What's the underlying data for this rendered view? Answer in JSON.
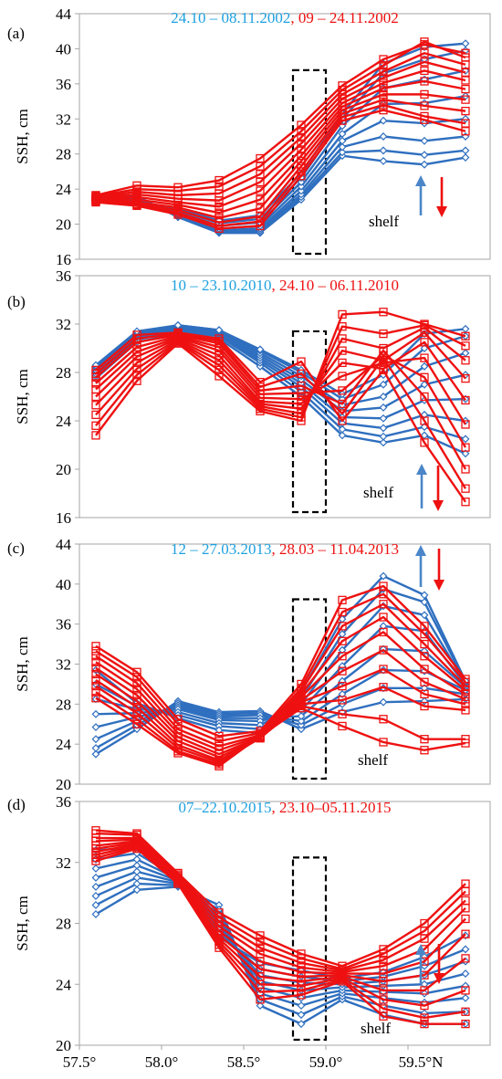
{
  "chart_data": [
    {
      "type": "line",
      "panel_label": "(a)",
      "ylabel": "SSH, cm",
      "ylim": [
        16,
        44
      ],
      "yticks": [
        16,
        20,
        24,
        28,
        32,
        36,
        40,
        44
      ],
      "period_1": "24.10 – 08.11.2002",
      "separator": ", ",
      "period_2": "09 – 24.11.2002",
      "annotation": "shelf",
      "x": [
        57.6,
        57.85,
        58.1,
        58.35,
        58.6,
        58.85,
        59.1,
        59.35,
        59.6,
        59.85
      ],
      "blue_series": [
        [
          23.2,
          23.2,
          20.8,
          19.0,
          19.0,
          22.8,
          27.8,
          27.2,
          26.8,
          27.6
        ],
        [
          23.1,
          23.0,
          20.9,
          19.1,
          19.1,
          23.1,
          28.2,
          28.4,
          27.9,
          28.4
        ],
        [
          23.0,
          22.9,
          21.0,
          19.2,
          19.3,
          23.4,
          28.8,
          30.0,
          29.5,
          30.0
        ],
        [
          22.9,
          22.8,
          21.1,
          19.3,
          19.5,
          23.8,
          29.5,
          31.8,
          31.5,
          32.0
        ],
        [
          22.8,
          22.7,
          21.2,
          19.5,
          19.8,
          24.3,
          30.3,
          33.7,
          33.8,
          34.6
        ],
        [
          22.8,
          22.6,
          21.4,
          19.8,
          20.2,
          24.8,
          31.2,
          35.5,
          36.5,
          37.5
        ],
        [
          22.7,
          22.5,
          21.6,
          20.1,
          20.6,
          25.3,
          32.0,
          37.2,
          38.8,
          39.8
        ],
        [
          22.7,
          22.5,
          21.8,
          20.4,
          21.0,
          25.8,
          32.6,
          38.3,
          40.2,
          40.6
        ]
      ],
      "red_series": [
        [
          23.3,
          24.4,
          24.2,
          25.0,
          27.5,
          31.3,
          35.8,
          38.8,
          40.5,
          39.5
        ],
        [
          23.2,
          24.0,
          23.8,
          24.3,
          26.6,
          30.6,
          35.3,
          38.1,
          40.8,
          39.0
        ],
        [
          23.1,
          23.7,
          23.3,
          23.5,
          25.7,
          29.9,
          34.8,
          37.4,
          39.5,
          38.2
        ],
        [
          23.0,
          23.4,
          22.9,
          22.7,
          24.8,
          29.2,
          34.3,
          36.7,
          38.5,
          37.3
        ],
        [
          22.9,
          23.1,
          22.5,
          22.0,
          23.8,
          28.5,
          33.8,
          36.1,
          37.5,
          36.4
        ],
        [
          22.8,
          22.8,
          22.2,
          21.3,
          22.8,
          27.8,
          33.4,
          35.5,
          36.3,
          35.4
        ],
        [
          22.8,
          22.5,
          21.9,
          20.7,
          21.8,
          27.2,
          33.0,
          34.8,
          34.8,
          34.2
        ],
        [
          22.7,
          22.3,
          21.6,
          20.2,
          20.9,
          26.6,
          32.6,
          34.2,
          33.5,
          32.9
        ],
        [
          22.6,
          22.2,
          21.3,
          19.8,
          20.3,
          26.0,
          32.2,
          33.6,
          32.3,
          31.5
        ],
        [
          22.5,
          22.1,
          21.1,
          19.5,
          19.8,
          25.5,
          31.8,
          33.0,
          31.9,
          30.6
        ]
      ]
    },
    {
      "type": "line",
      "panel_label": "(b)",
      "ylabel": "SSH, cm",
      "ylim": [
        16,
        36
      ],
      "yticks": [
        16,
        20,
        24,
        28,
        32,
        36
      ],
      "period_1": "10 – 23.10.2010",
      "separator": ", ",
      "period_2": "24.10 – 06.11.2010",
      "annotation": "shelf",
      "x": [
        57.6,
        57.85,
        58.1,
        58.35,
        58.6,
        58.85,
        59.1,
        59.35,
        59.6,
        59.85
      ],
      "blue_series": [
        [
          27.5,
          30.5,
          31.2,
          30.8,
          28.5,
          26.0,
          22.8,
          22.2,
          22.8,
          21.3
        ],
        [
          27.7,
          30.7,
          31.4,
          31.0,
          28.8,
          26.4,
          23.3,
          22.7,
          23.5,
          22.5
        ],
        [
          27.9,
          30.9,
          31.5,
          31.1,
          29.0,
          26.8,
          23.8,
          23.4,
          24.5,
          24.0
        ],
        [
          28.1,
          31.0,
          31.6,
          31.2,
          29.2,
          27.1,
          24.3,
          24.2,
          25.7,
          25.8
        ],
        [
          28.2,
          31.1,
          31.7,
          31.3,
          29.4,
          27.4,
          24.8,
          25.1,
          27.0,
          27.8
        ],
        [
          28.4,
          31.2,
          31.8,
          31.4,
          29.6,
          27.7,
          25.3,
          26.0,
          28.5,
          29.6
        ],
        [
          28.5,
          31.3,
          31.9,
          31.5,
          29.8,
          28.0,
          25.8,
          27.0,
          30.0,
          31.0
        ],
        [
          28.6,
          31.4,
          31.9,
          31.5,
          29.9,
          28.2,
          26.2,
          27.8,
          31.2,
          31.6
        ]
      ],
      "red_series": [
        [
          22.8,
          27.3,
          30.4,
          27.7,
          24.8,
          24.0,
          32.8,
          33.0,
          32.0,
          31.0
        ],
        [
          23.6,
          27.8,
          30.5,
          28.2,
          25.0,
          24.3,
          31.8,
          31.2,
          31.9,
          30.2
        ],
        [
          24.5,
          28.3,
          30.6,
          28.6,
          25.2,
          24.6,
          30.8,
          30.0,
          31.7,
          29.0
        ],
        [
          25.3,
          28.8,
          30.7,
          29.0,
          25.4,
          25.0,
          29.8,
          29.0,
          31.3,
          27.5
        ],
        [
          26.0,
          29.3,
          30.8,
          29.4,
          25.6,
          25.4,
          28.8,
          28.3,
          30.5,
          25.7
        ],
        [
          26.6,
          29.7,
          30.9,
          29.8,
          25.9,
          25.8,
          27.7,
          28.8,
          29.2,
          23.7
        ],
        [
          27.1,
          30.1,
          31.0,
          30.1,
          26.2,
          26.3,
          26.5,
          29.4,
          27.6,
          21.8
        ],
        [
          27.6,
          30.5,
          31.1,
          30.4,
          26.5,
          26.9,
          25.4,
          29.8,
          26.0,
          20.0
        ],
        [
          27.9,
          30.8,
          31.2,
          30.6,
          26.8,
          27.9,
          24.6,
          29.2,
          24.0,
          18.4
        ],
        [
          28.2,
          31.1,
          31.3,
          30.8,
          27.2,
          28.9,
          24.0,
          28.2,
          22.2,
          17.3
        ]
      ]
    },
    {
      "type": "line",
      "panel_label": "(c)",
      "ylabel": "SSH, cm",
      "ylim": [
        20,
        44
      ],
      "yticks": [
        20,
        24,
        28,
        32,
        36,
        40,
        44
      ],
      "period_1": "12 – 27.03.2013",
      "separator": ", ",
      "period_2": "28.03 – 11.04.2013",
      "annotation": "shelf",
      "x": [
        57.6,
        57.85,
        58.1,
        58.35,
        58.6,
        58.85,
        59.1,
        59.35,
        59.6,
        59.85
      ],
      "blue_series": [
        [
          23.0,
          25.5,
          28.3,
          27.2,
          27.3,
          25.5,
          27.2,
          28.2,
          28.3,
          28.5
        ],
        [
          23.6,
          25.9,
          28.1,
          27.0,
          27.1,
          25.9,
          28.0,
          29.6,
          29.6,
          29.0
        ],
        [
          24.5,
          26.3,
          27.9,
          26.8,
          26.9,
          26.3,
          29.0,
          31.4,
          31.3,
          29.4
        ],
        [
          25.7,
          26.7,
          27.7,
          26.6,
          26.6,
          26.8,
          30.3,
          33.5,
          33.3,
          29.7
        ],
        [
          27.0,
          27.1,
          27.5,
          26.4,
          26.3,
          27.4,
          31.8,
          35.8,
          35.3,
          29.9
        ],
        [
          28.5,
          27.5,
          27.2,
          26.1,
          25.9,
          28.0,
          33.4,
          37.8,
          36.9,
          30.1
        ],
        [
          30.0,
          27.8,
          26.9,
          25.8,
          25.5,
          28.6,
          35.0,
          39.5,
          38.2,
          30.2
        ],
        [
          31.4,
          28.1,
          26.6,
          25.4,
          25.1,
          29.2,
          36.5,
          40.8,
          38.9,
          30.3
        ]
      ],
      "red_series": [
        [
          33.8,
          31.2,
          26.5,
          24.8,
          25.3,
          30.0,
          38.4,
          39.8,
          35.8,
          30.5
        ],
        [
          33.3,
          30.7,
          26.0,
          24.3,
          25.1,
          29.6,
          37.2,
          39.0,
          35.0,
          30.2
        ],
        [
          32.8,
          30.1,
          25.5,
          23.8,
          24.9,
          29.3,
          35.8,
          38.0,
          34.0,
          29.8
        ],
        [
          32.2,
          29.5,
          25.1,
          23.4,
          24.8,
          29.0,
          34.3,
          36.7,
          32.8,
          29.4
        ],
        [
          31.6,
          28.9,
          24.7,
          23.0,
          24.7,
          28.7,
          32.8,
          35.2,
          31.5,
          29.0
        ],
        [
          31.0,
          28.3,
          24.3,
          22.7,
          24.6,
          28.4,
          31.3,
          33.4,
          30.2,
          28.5
        ],
        [
          30.4,
          27.7,
          23.9,
          22.4,
          24.6,
          28.2,
          29.8,
          31.5,
          29.0,
          28.0
        ],
        [
          29.8,
          27.1,
          23.6,
          22.2,
          24.6,
          28.0,
          28.4,
          29.7,
          27.8,
          27.4
        ],
        [
          29.2,
          26.5,
          23.3,
          22.0,
          24.7,
          27.8,
          27.0,
          26.5,
          24.5,
          24.5
        ],
        [
          28.6,
          26.0,
          23.1,
          21.8,
          24.8,
          27.6,
          25.8,
          24.2,
          23.4,
          24.1
        ]
      ]
    },
    {
      "type": "line",
      "panel_label": "(d)",
      "ylabel": "SSH, cm",
      "ylim": [
        20,
        36
      ],
      "yticks": [
        20,
        24,
        28,
        32,
        36
      ],
      "period_1": "07–22.10.2015",
      "separator": ", ",
      "period_2": "23.10–05.11.2015",
      "annotation": "shelf",
      "x": [
        57.6,
        57.85,
        58.1,
        58.35,
        58.6,
        58.85,
        59.1,
        59.35,
        59.6,
        59.85
      ],
      "blue_series": [
        [
          28.6,
          30.2,
          30.4,
          29.2,
          22.6,
          21.4,
          23.0,
          22.0,
          21.4,
          21.4
        ],
        [
          29.2,
          30.6,
          30.5,
          28.9,
          23.0,
          22.0,
          23.2,
          22.6,
          22.1,
          22.2
        ],
        [
          29.8,
          31.0,
          30.6,
          28.6,
          23.4,
          22.6,
          23.4,
          23.1,
          22.8,
          23.1
        ],
        [
          30.4,
          31.4,
          30.7,
          28.3,
          23.8,
          23.1,
          23.6,
          23.5,
          23.4,
          23.9
        ],
        [
          31.0,
          31.8,
          30.8,
          28.0,
          24.2,
          23.6,
          23.8,
          23.9,
          24.0,
          24.7
        ],
        [
          31.6,
          32.2,
          30.9,
          27.7,
          24.6,
          24.1,
          24.0,
          24.2,
          24.6,
          25.5
        ],
        [
          32.2,
          32.6,
          31.0,
          27.4,
          25.0,
          24.5,
          24.2,
          24.5,
          25.2,
          26.3
        ],
        [
          32.8,
          33.0,
          31.1,
          27.1,
          25.4,
          24.9,
          24.4,
          24.8,
          25.8,
          27.2
        ]
      ],
      "red_series": [
        [
          34.1,
          33.9,
          31.3,
          28.7,
          27.2,
          26.0,
          25.2,
          26.3,
          28.0,
          30.6
        ],
        [
          33.9,
          33.8,
          31.2,
          28.4,
          26.8,
          25.7,
          25.0,
          26.0,
          27.5,
          30.1
        ],
        [
          33.6,
          33.6,
          31.1,
          28.1,
          26.4,
          25.4,
          24.9,
          25.6,
          27.0,
          29.5
        ],
        [
          33.4,
          33.5,
          31.0,
          27.8,
          26.0,
          25.1,
          24.8,
          25.2,
          26.3,
          29.0
        ],
        [
          33.1,
          33.4,
          30.9,
          27.5,
          25.5,
          24.8,
          24.7,
          24.7,
          25.5,
          28.3
        ],
        [
          32.9,
          33.3,
          30.8,
          27.2,
          25.0,
          24.5,
          24.6,
          24.2,
          24.6,
          27.3
        ],
        [
          32.7,
          33.2,
          30.8,
          27.0,
          24.5,
          24.2,
          24.5,
          23.6,
          23.6,
          25.7
        ],
        [
          32.5,
          33.1,
          30.7,
          26.8,
          24.0,
          23.9,
          24.4,
          23.0,
          22.6,
          23.6
        ],
        [
          32.3,
          33.0,
          30.7,
          26.6,
          23.5,
          23.6,
          24.3,
          22.4,
          21.8,
          22.2
        ],
        [
          32.1,
          32.9,
          30.6,
          26.4,
          23.0,
          23.3,
          24.2,
          21.9,
          21.4,
          21.4
        ]
      ]
    }
  ],
  "x_axis": {
    "xlim": [
      57.5,
      60.0
    ],
    "ticks": [
      57.5,
      58.0,
      58.5,
      59.0,
      59.5
    ],
    "tick_labels": [
      "57.5°",
      "58.0°",
      "58.5°",
      "59.0°",
      "59.5°N"
    ]
  },
  "shelf_box_lon": [
    58.8,
    59.0
  ],
  "colors": {
    "blue_title": "#1ea0e0",
    "blue_line": "#2f6fbf",
    "red": "#ee1111",
    "arrow_blue": "#4a86c8",
    "axis": "#a6a6a6",
    "text": "#000000"
  }
}
